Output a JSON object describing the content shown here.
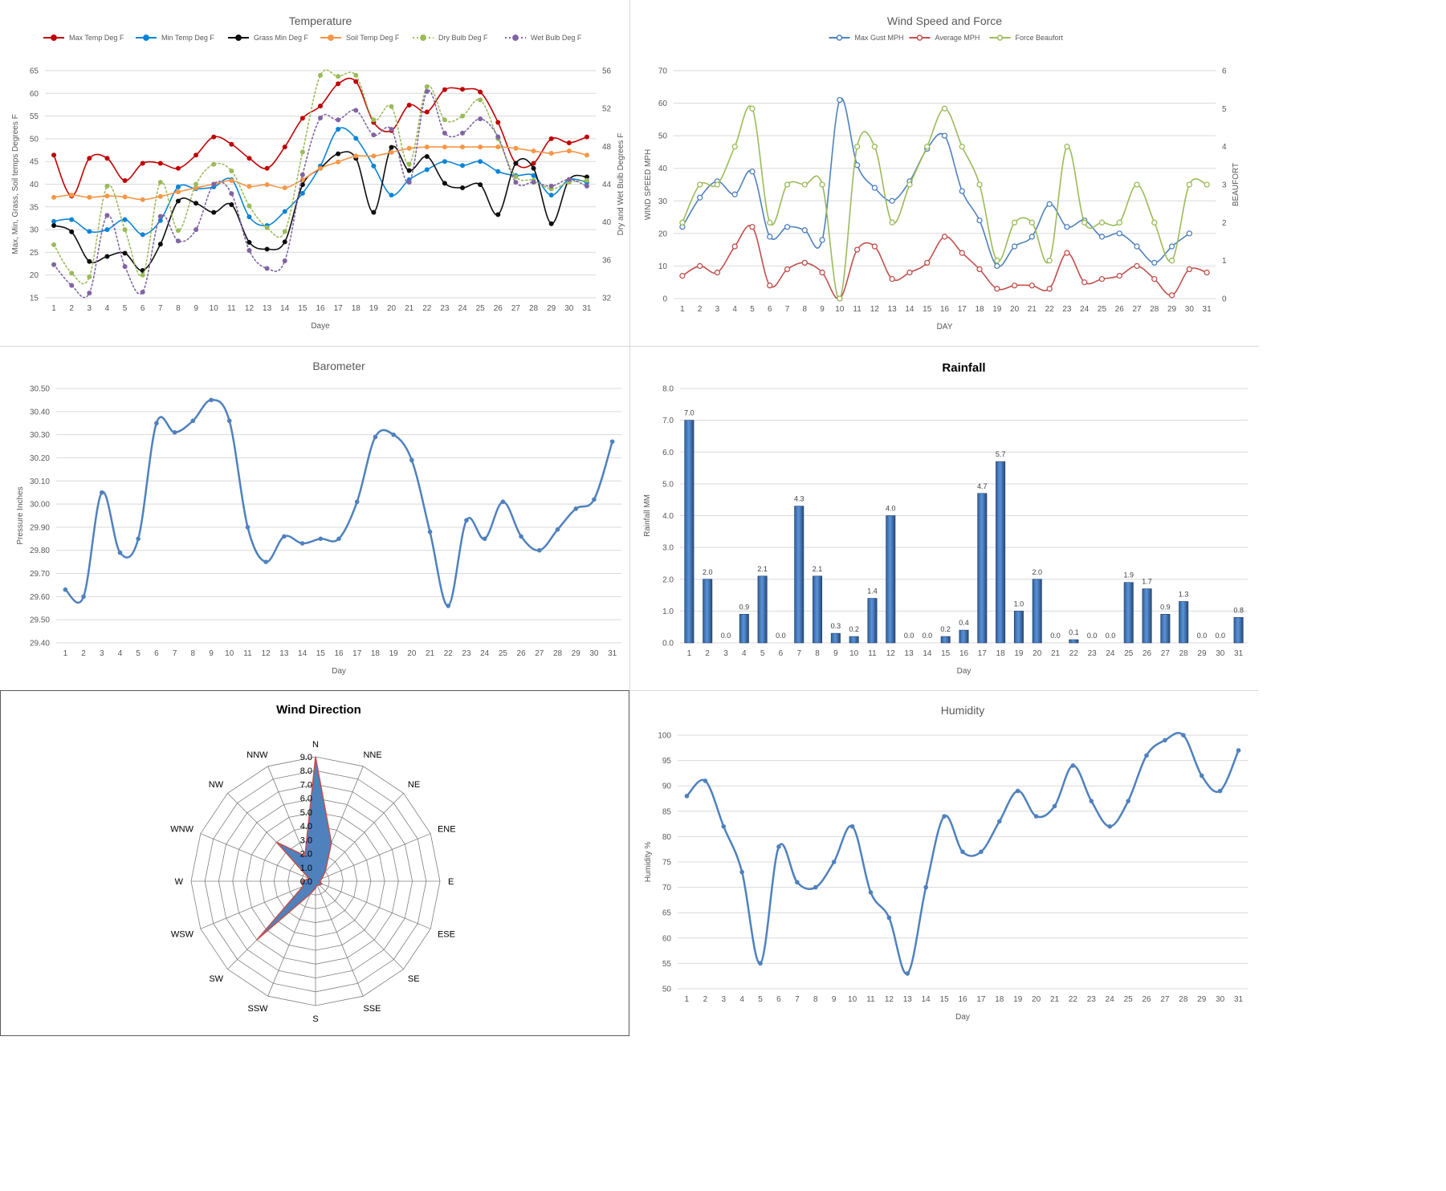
{
  "chart_data": [
    {
      "id": "temperature",
      "type": "line",
      "title": "Temperature",
      "xlabel": "Daye",
      "ylabel": "Max, Min, Grass, Soil temps Degrees F",
      "y2label": "Dry and Wet Bulb Degrees F",
      "ylim": [
        15,
        65
      ],
      "yticks": [
        15,
        20,
        25,
        30,
        35,
        40,
        45,
        50,
        55,
        60,
        65
      ],
      "y2lim": [
        32,
        56
      ],
      "y2ticks": [
        32,
        36,
        40,
        44,
        48,
        52,
        56
      ],
      "x": [
        1,
        2,
        3,
        4,
        5,
        6,
        7,
        8,
        9,
        10,
        11,
        12,
        13,
        14,
        15,
        16,
        17,
        18,
        19,
        20,
        21,
        22,
        23,
        24,
        25,
        26,
        27,
        28,
        29,
        30,
        31
      ],
      "legend_position": "top",
      "series": [
        {
          "name": "Max Temp Deg F",
          "color": "#c00000",
          "axis": "left",
          "dash": false,
          "values": [
            46.4,
            37.4,
            45.7,
            45.7,
            40.8,
            44.6,
            44.6,
            43.5,
            46.4,
            50.4,
            48.8,
            45.7,
            43.5,
            48.2,
            54.5,
            57.2,
            62.1,
            62.6,
            53.6,
            51.8,
            57.4,
            55.9,
            60.8,
            60.9,
            60.3,
            53.6,
            44.6,
            44.6,
            50.0,
            49.1,
            50.4
          ]
        },
        {
          "name": "Min Temp Deg F",
          "color": "#0a84d6",
          "axis": "left",
          "dash": false,
          "values": [
            31.8,
            32.2,
            29.6,
            30.0,
            32.2,
            28.9,
            32.0,
            39.4,
            39.0,
            39.4,
            41.0,
            32.8,
            30.9,
            34.0,
            38.0,
            44.0,
            52.1,
            50.1,
            44.0,
            37.6,
            41.0,
            43.2,
            45.0,
            44.1,
            45.0,
            42.8,
            41.9,
            41.9,
            37.6,
            41.0,
            40.4
          ]
        },
        {
          "name": "Grass Min Deg F",
          "color": "#0d0d0d",
          "axis": "left",
          "dash": false,
          "values": [
            30.9,
            29.5,
            23.0,
            24.1,
            24.8,
            21.0,
            26.8,
            36.3,
            35.8,
            33.8,
            35.5,
            27.2,
            25.7,
            27.3,
            39.9,
            43.5,
            46.7,
            45.7,
            33.8,
            48.1,
            43.0,
            46.1,
            40.2,
            39.2,
            39.9,
            33.3,
            44.6,
            43.5,
            31.3,
            41.0,
            41.6
          ]
        },
        {
          "name": "Soil Temp Deg F",
          "color": "#f79646",
          "axis": "left",
          "dash": false,
          "values": [
            37.1,
            37.6,
            37.1,
            37.4,
            37.2,
            36.6,
            37.3,
            38.3,
            39.2,
            40.0,
            40.8,
            39.5,
            39.9,
            39.2,
            41.0,
            43.5,
            44.9,
            46.2,
            46.2,
            47.0,
            47.9,
            48.2,
            48.2,
            48.2,
            48.2,
            48.2,
            47.9,
            47.3,
            46.8,
            47.3,
            46.4
          ]
        },
        {
          "name": "Dry Bulb Deg F",
          "color": "#9bbb59",
          "axis": "right",
          "dash": true,
          "values": [
            37.6,
            34.6,
            34.2,
            43.8,
            39.2,
            34.4,
            44.2,
            39.1,
            44.0,
            46.1,
            45.4,
            41.7,
            39.4,
            39.0,
            47.4,
            55.5,
            55.4,
            55.5,
            50.8,
            52.2,
            46.1,
            54.3,
            50.8,
            51.2,
            52.9,
            48.8,
            44.8,
            44.4,
            43.5,
            44.2,
            44.4
          ]
        },
        {
          "name": "Wet Bulb Deg F",
          "color": "#8064a2",
          "axis": "right",
          "dash": true,
          "values": [
            35.5,
            33.3,
            32.5,
            40.7,
            35.3,
            32.6,
            40.6,
            38.0,
            39.2,
            44.0,
            43.0,
            37.0,
            35.1,
            35.9,
            45.0,
            51.0,
            50.8,
            51.8,
            49.2,
            49.8,
            44.2,
            53.8,
            49.4,
            49.4,
            50.9,
            49.0,
            44.2,
            44.2,
            43.8,
            44.5,
            43.8
          ]
        }
      ]
    },
    {
      "id": "wind",
      "type": "line",
      "title": "Wind Speed and Force",
      "xlabel": "DAY",
      "ylabel": "WIND SPEED MPH",
      "y2label": "BEAUFORT",
      "ylim": [
        0,
        70
      ],
      "yticks": [
        0,
        10,
        20,
        30,
        40,
        50,
        60,
        70
      ],
      "y2lim": [
        0,
        6
      ],
      "y2ticks": [
        0,
        1,
        2,
        3,
        4,
        5,
        6
      ],
      "x": [
        1,
        2,
        3,
        4,
        5,
        6,
        7,
        8,
        9,
        10,
        11,
        12,
        13,
        14,
        15,
        16,
        17,
        18,
        19,
        20,
        21,
        22,
        23,
        24,
        25,
        26,
        27,
        28,
        29,
        30,
        31
      ],
      "legend_position": "top",
      "series": [
        {
          "name": "Max Gust MPH",
          "color": "#4f81bd",
          "axis": "left",
          "values": [
            22,
            31,
            36,
            32,
            39,
            19,
            22,
            21,
            18,
            61,
            41,
            34,
            30,
            36,
            46,
            50,
            33,
            24,
            10,
            16,
            19,
            29,
            22,
            24,
            19,
            20,
            16,
            11,
            16,
            20,
            null
          ]
        },
        {
          "name": "Average MPH",
          "color": "#c0504d",
          "axis": "left",
          "values": [
            7,
            10,
            8,
            16,
            22,
            4,
            9,
            11,
            8,
            0,
            15,
            16,
            6,
            8,
            11,
            19,
            14,
            9,
            3,
            4,
            4,
            3,
            14,
            5,
            6,
            7,
            10,
            6,
            1,
            9,
            8
          ]
        },
        {
          "name": "Force Beaufort",
          "color": "#9bbb59",
          "axis": "right",
          "values": [
            2,
            3,
            3,
            4,
            5,
            2,
            3,
            3,
            3,
            0,
            4,
            4,
            2,
            3,
            4,
            5,
            4,
            3,
            1,
            2,
            2,
            1,
            4,
            2,
            2,
            2,
            3,
            2,
            1,
            3,
            3
          ]
        }
      ]
    },
    {
      "id": "barometer",
      "type": "line",
      "title": "Barometer",
      "xlabel": "Day",
      "ylabel": "Pressure Inches",
      "ylim": [
        29.4,
        30.5
      ],
      "yticks": [
        "29.40",
        "29.50",
        "29.60",
        "29.70",
        "29.80",
        "29.90",
        "30.00",
        "30.10",
        "30.20",
        "30.30",
        "30.40",
        "30.50"
      ],
      "x": [
        1,
        2,
        3,
        4,
        5,
        6,
        7,
        8,
        9,
        10,
        11,
        12,
        13,
        14,
        15,
        16,
        17,
        18,
        19,
        20,
        21,
        22,
        23,
        24,
        25,
        26,
        27,
        28,
        29,
        30,
        31
      ],
      "series": [
        {
          "name": "",
          "color": "#4f81bd",
          "values": [
            29.63,
            29.6,
            30.05,
            29.79,
            29.85,
            30.35,
            30.31,
            30.36,
            30.45,
            30.36,
            29.9,
            29.75,
            29.86,
            29.83,
            29.85,
            29.85,
            30.01,
            30.29,
            30.3,
            30.19,
            29.88,
            29.56,
            29.93,
            29.85,
            30.01,
            29.86,
            29.8,
            29.89,
            29.98,
            30.02,
            30.27
          ]
        }
      ]
    },
    {
      "id": "rainfall",
      "type": "bar",
      "title": "Rainfall",
      "xlabel": "Day",
      "ylabel": "Rainfall MM",
      "ylim": [
        0,
        8
      ],
      "yticks": [
        "0.0",
        "1.0",
        "2.0",
        "3.0",
        "4.0",
        "5.0",
        "6.0",
        "7.0",
        "8.0"
      ],
      "categories": [
        1,
        2,
        3,
        4,
        5,
        6,
        7,
        8,
        9,
        10,
        11,
        12,
        13,
        14,
        15,
        16,
        17,
        18,
        19,
        20,
        21,
        22,
        23,
        24,
        25,
        26,
        27,
        28,
        29,
        30,
        31
      ],
      "values": [
        7.0,
        2.0,
        0.0,
        0.9,
        2.1,
        0.0,
        4.3,
        2.1,
        0.3,
        0.2,
        1.4,
        4.0,
        0.0,
        0.0,
        0.2,
        0.4,
        4.7,
        5.7,
        1.0,
        2.0,
        0.0,
        0.1,
        0.0,
        0.0,
        1.9,
        1.7,
        0.9,
        1.3,
        0.0,
        0.0,
        0.8
      ],
      "labels": [
        "7.0",
        "2.0",
        "0.0",
        "0.9",
        "2.1",
        "0.0",
        "4.3",
        "2.1",
        "0.3",
        "0.2",
        "1.4",
        "4.0",
        "0.0",
        "0.0",
        "0.2",
        "0.4",
        "4.7",
        "5.7",
        "1.0",
        "2.0",
        "0.0",
        "0.1",
        "0.0",
        "0.0",
        "1.9",
        "1.7",
        "0.9",
        "1.3",
        "0.0",
        "0.0",
        "0.8"
      ],
      "color": "#4f81bd"
    },
    {
      "id": "winddir",
      "type": "radar",
      "title": "Wind Direction",
      "rlim": [
        0,
        9
      ],
      "rticks": [
        "0.0",
        "1.0",
        "2.0",
        "3.0",
        "4.0",
        "5.0",
        "6.0",
        "7.0",
        "8.0",
        "9.0"
      ],
      "categories": [
        "N",
        "NNE",
        "NE",
        "ENE",
        "E",
        "ESE",
        "SE",
        "SSE",
        "S",
        "SSW",
        "SW",
        "WSW",
        "W",
        "WNW",
        "NW",
        "NNW"
      ],
      "values": [
        9,
        3,
        1,
        0.5,
        0.3,
        0.5,
        0.4,
        0.3,
        0.5,
        1,
        6,
        1,
        1,
        0.5,
        4,
        2
      ],
      "fill": "#4f81bd",
      "stroke": "#c0504d"
    },
    {
      "id": "humidity",
      "type": "line",
      "title": "Humidity",
      "xlabel": "Day",
      "ylabel": "Humidity %",
      "ylim": [
        50,
        100
      ],
      "yticks": [
        50,
        55,
        60,
        65,
        70,
        75,
        80,
        85,
        90,
        95,
        100
      ],
      "x": [
        1,
        2,
        3,
        4,
        5,
        6,
        7,
        8,
        9,
        10,
        11,
        12,
        13,
        14,
        15,
        16,
        17,
        18,
        19,
        20,
        21,
        22,
        23,
        24,
        25,
        26,
        27,
        28,
        29,
        30,
        31
      ],
      "series": [
        {
          "name": "",
          "color": "#4f81bd",
          "values": [
            88,
            91,
            82,
            73,
            55,
            78,
            71,
            70,
            75,
            82,
            69,
            64,
            53,
            70,
            84,
            77,
            77,
            83,
            89,
            84,
            86,
            94,
            87,
            82,
            87,
            96,
            99,
            100,
            92,
            89,
            97
          ]
        }
      ]
    }
  ]
}
